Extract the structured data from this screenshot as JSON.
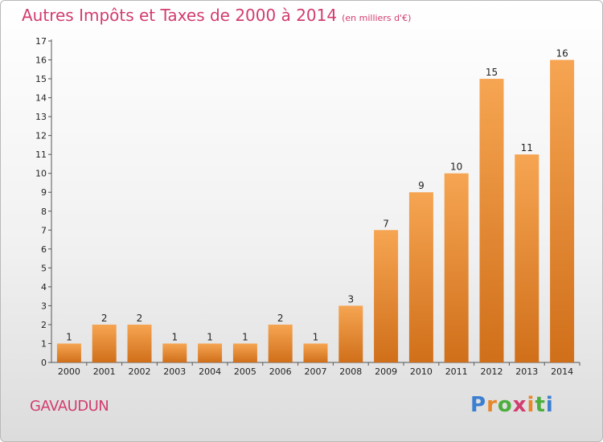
{
  "header": {
    "title": "Autres Impôts et Taxes de 2000 à 2014",
    "unit": "(en milliers d'€)"
  },
  "footer": {
    "commune": "GAVAUDUN",
    "logo_letters": [
      "P",
      "r",
      "o",
      "x",
      "i",
      "t",
      "i"
    ],
    "logo_colors": [
      "#3b7fd0",
      "#e8872a",
      "#4cae3c",
      "#d23c6e",
      "#e8872a",
      "#4cae3c",
      "#3b7fd0"
    ]
  },
  "colors": {
    "bar_light": "#f6a552",
    "bar_dark": "#d06f1a",
    "title": "#d23c6e"
  },
  "chart_data": {
    "type": "bar",
    "title": "Autres Impôts et Taxes de 2000 à 2014",
    "categories": [
      "2000",
      "2001",
      "2002",
      "2003",
      "2004",
      "2005",
      "2006",
      "2007",
      "2008",
      "2009",
      "2010",
      "2011",
      "2012",
      "2013",
      "2014"
    ],
    "values": [
      1,
      2,
      2,
      1,
      1,
      1,
      2,
      1,
      3,
      7,
      9,
      10,
      15,
      11,
      16
    ],
    "ylim": [
      0,
      17
    ],
    "yticks": [
      0,
      1,
      2,
      3,
      4,
      5,
      6,
      7,
      8,
      9,
      10,
      11,
      12,
      13,
      14,
      15,
      16,
      17
    ],
    "xlabel": "",
    "ylabel": "",
    "grid": false
  }
}
